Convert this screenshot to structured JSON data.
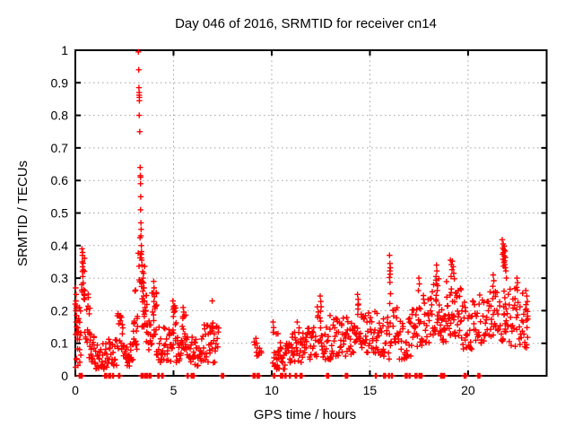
{
  "page": {
    "background": "#ffffff"
  },
  "chart_data": {
    "type": "scatter",
    "title": "Day 046 of 2016, SRMTID for receiver cn14",
    "xlabel": "GPS time / hours",
    "ylabel": "SRMTID / TECUs",
    "xlim": [
      0,
      24
    ],
    "ylim": [
      0,
      1
    ],
    "xticks": {
      "values": [
        0,
        5,
        10,
        15,
        20
      ],
      "labels": [
        "0",
        "5",
        "10",
        "15",
        "20"
      ]
    },
    "yticks": {
      "values": [
        0,
        0.1,
        0.2,
        0.3,
        0.4,
        0.5,
        0.6,
        0.7,
        0.8,
        0.9,
        1
      ],
      "labels": [
        "0",
        "0.1",
        "0.2",
        "0.3",
        "0.4",
        "0.5",
        "0.6",
        "0.7",
        "0.8",
        "0.9",
        "1"
      ]
    },
    "grid": true,
    "grid_style": "dotted",
    "grid_color": "#a0a0a0",
    "border_color": "#000000",
    "legend_position": "none",
    "series_name": "SRMTID",
    "marker": {
      "shape": "plus",
      "color": "#ff0000",
      "size": 7
    },
    "seed": 1337,
    "points": [
      [
        3.21,
        0.995
      ],
      [
        3.23,
        0.94
      ],
      [
        3.24,
        0.885
      ],
      [
        3.25,
        0.87
      ],
      [
        3.25,
        0.862
      ],
      [
        3.26,
        0.855
      ],
      [
        3.26,
        0.845
      ],
      [
        3.25,
        0.8
      ],
      [
        3.28,
        0.75
      ],
      [
        3.3,
        0.64
      ],
      [
        3.31,
        0.615
      ],
      [
        3.32,
        0.61
      ],
      [
        3.32,
        0.59
      ],
      [
        3.33,
        0.55
      ],
      [
        3.32,
        0.51
      ],
      [
        3.34,
        0.47
      ],
      [
        3.35,
        0.45
      ],
      [
        3.34,
        0.43
      ],
      [
        3.36,
        0.4
      ],
      [
        3.33,
        0.375
      ],
      [
        3.38,
        0.355
      ],
      [
        3.4,
        0.34
      ],
      [
        3.42,
        0.32
      ],
      [
        3.45,
        0.3
      ],
      [
        3.47,
        0.285
      ],
      [
        3.5,
        0.27
      ],
      [
        3.44,
        0.26
      ],
      [
        3.48,
        0.245
      ],
      [
        3.52,
        0.23
      ],
      [
        3.55,
        0.21
      ],
      [
        0.02,
        0.27
      ],
      [
        0.04,
        0.25
      ],
      [
        0.03,
        0.23
      ],
      [
        0.05,
        0.215
      ],
      [
        0.02,
        0.2
      ],
      [
        0.06,
        0.185
      ],
      [
        0.04,
        0.165
      ],
      [
        0.07,
        0.15
      ],
      [
        0.34,
        0.39
      ],
      [
        0.36,
        0.37
      ],
      [
        0.35,
        0.35
      ],
      [
        0.37,
        0.335
      ],
      [
        0.36,
        0.32
      ],
      [
        0.38,
        0.305
      ],
      [
        0.4,
        0.285
      ],
      [
        0.42,
        0.265
      ],
      [
        0.44,
        0.25
      ],
      [
        3.99,
        0.29
      ],
      [
        4.01,
        0.27
      ],
      [
        3.97,
        0.255
      ],
      [
        4.03,
        0.243
      ],
      [
        4.0,
        0.228
      ],
      [
        4.05,
        0.212
      ],
      [
        4.97,
        0.23
      ],
      [
        5.0,
        0.212
      ],
      [
        5.02,
        0.195
      ],
      [
        4.99,
        0.182
      ],
      [
        5.49,
        0.21
      ],
      [
        5.52,
        0.196
      ],
      [
        5.47,
        0.182
      ],
      [
        6.97,
        0.23
      ],
      [
        7.0,
        0.162
      ],
      [
        6.94,
        0.152
      ],
      [
        9.2,
        0.115
      ],
      [
        9.23,
        0.1
      ],
      [
        10.07,
        0.165
      ],
      [
        10.1,
        0.148
      ],
      [
        11.3,
        0.165
      ],
      [
        12.47,
        0.245
      ],
      [
        12.5,
        0.228
      ],
      [
        12.52,
        0.212
      ],
      [
        12.49,
        0.198
      ],
      [
        12.97,
        0.185
      ],
      [
        14.37,
        0.25
      ],
      [
        14.4,
        0.235
      ],
      [
        14.42,
        0.22
      ],
      [
        14.39,
        0.205
      ],
      [
        16.0,
        0.37
      ],
      [
        16.02,
        0.345
      ],
      [
        16.04,
        0.332
      ],
      [
        16.01,
        0.322
      ],
      [
        16.03,
        0.312
      ],
      [
        16.0,
        0.302
      ],
      [
        16.02,
        0.287
      ],
      [
        16.05,
        0.252
      ],
      [
        16.01,
        0.222
      ],
      [
        17.49,
        0.3
      ],
      [
        17.52,
        0.282
      ],
      [
        17.47,
        0.262
      ],
      [
        18.39,
        0.34
      ],
      [
        18.41,
        0.322
      ],
      [
        18.37,
        0.305
      ],
      [
        18.4,
        0.282
      ],
      [
        18.43,
        0.262
      ],
      [
        18.38,
        0.247
      ],
      [
        19.1,
        0.355
      ],
      [
        19.15,
        0.342
      ],
      [
        19.2,
        0.352
      ],
      [
        19.24,
        0.335
      ],
      [
        19.18,
        0.326
      ],
      [
        19.27,
        0.315
      ],
      [
        19.13,
        0.305
      ],
      [
        19.3,
        0.298
      ],
      [
        21.28,
        0.31
      ],
      [
        21.31,
        0.292
      ],
      [
        21.26,
        0.275
      ],
      [
        21.3,
        0.255
      ],
      [
        21.74,
        0.418
      ],
      [
        21.79,
        0.405
      ],
      [
        21.84,
        0.398
      ],
      [
        21.77,
        0.392
      ],
      [
        21.82,
        0.387
      ],
      [
        21.88,
        0.383
      ],
      [
        21.8,
        0.378
      ],
      [
        21.75,
        0.373
      ],
      [
        21.85,
        0.368
      ],
      [
        21.9,
        0.363
      ],
      [
        21.78,
        0.358
      ],
      [
        21.86,
        0.353
      ],
      [
        21.83,
        0.348
      ],
      [
        21.87,
        0.342
      ],
      [
        21.81,
        0.337
      ],
      [
        21.89,
        0.332
      ],
      [
        21.92,
        0.322
      ],
      [
        21.95,
        0.3
      ],
      [
        21.83,
        0.26
      ],
      [
        21.87,
        0.24
      ],
      [
        21.9,
        0.22
      ],
      [
        21.84,
        0.19
      ],
      [
        21.88,
        0.16
      ],
      [
        21.92,
        0.135
      ],
      [
        22.49,
        0.3
      ],
      [
        22.52,
        0.286
      ],
      [
        22.47,
        0.272
      ],
      [
        22.94,
        0.262
      ],
      [
        22.99,
        0.245
      ],
      [
        23.02,
        0.228
      ],
      [
        22.97,
        0.205
      ],
      [
        23.04,
        0.175
      ],
      [
        23.0,
        0.148
      ],
      [
        23.03,
        0.118
      ],
      [
        22.98,
        0.095
      ]
    ],
    "bands": [
      [
        0.0,
        0.3,
        0.12,
        0.28,
        14
      ],
      [
        0.0,
        0.28,
        0.02,
        0.12,
        10
      ],
      [
        0.3,
        0.5,
        0.22,
        0.38,
        10
      ],
      [
        0.45,
        0.75,
        0.1,
        0.26,
        16
      ],
      [
        0.7,
        1.0,
        0.04,
        0.13,
        16
      ],
      [
        1.0,
        1.6,
        0.02,
        0.1,
        28
      ],
      [
        1.6,
        2.1,
        0.03,
        0.12,
        24
      ],
      [
        2.1,
        2.45,
        0.06,
        0.2,
        18
      ],
      [
        2.45,
        2.95,
        0.03,
        0.11,
        22
      ],
      [
        2.95,
        3.18,
        0.08,
        0.3,
        16
      ],
      [
        3.2,
        3.4,
        0.28,
        0.44,
        10
      ],
      [
        3.35,
        3.65,
        0.15,
        0.37,
        18
      ],
      [
        3.6,
        3.9,
        0.08,
        0.2,
        14
      ],
      [
        3.9,
        4.15,
        0.12,
        0.27,
        16
      ],
      [
        4.1,
        4.9,
        0.04,
        0.15,
        36
      ],
      [
        4.9,
        5.15,
        0.08,
        0.22,
        14
      ],
      [
        5.1,
        5.45,
        0.04,
        0.12,
        16
      ],
      [
        5.4,
        5.65,
        0.08,
        0.2,
        12
      ],
      [
        5.6,
        6.45,
        0.03,
        0.13,
        38
      ],
      [
        6.45,
        7.3,
        0.04,
        0.16,
        40
      ],
      [
        9.1,
        9.5,
        0.055,
        0.105,
        10
      ],
      [
        10.05,
        10.35,
        0.02,
        0.15,
        16
      ],
      [
        10.3,
        11.0,
        0.02,
        0.12,
        30
      ],
      [
        11.0,
        11.55,
        0.04,
        0.16,
        26
      ],
      [
        11.55,
        12.3,
        0.05,
        0.15,
        34
      ],
      [
        12.3,
        12.6,
        0.08,
        0.22,
        16
      ],
      [
        12.6,
        13.1,
        0.05,
        0.15,
        22
      ],
      [
        13.1,
        14.2,
        0.06,
        0.18,
        48
      ],
      [
        14.2,
        14.6,
        0.08,
        0.24,
        18
      ],
      [
        14.6,
        15.45,
        0.07,
        0.2,
        38
      ],
      [
        15.45,
        16.1,
        0.05,
        0.18,
        28
      ],
      [
        16.15,
        16.45,
        0.1,
        0.24,
        14
      ],
      [
        16.45,
        17.1,
        0.05,
        0.18,
        28
      ],
      [
        17.1,
        17.65,
        0.08,
        0.24,
        24
      ],
      [
        17.65,
        18.25,
        0.1,
        0.26,
        26
      ],
      [
        18.25,
        19.0,
        0.1,
        0.3,
        40
      ],
      [
        19.0,
        19.65,
        0.12,
        0.28,
        34
      ],
      [
        19.65,
        20.35,
        0.08,
        0.23,
        32
      ],
      [
        20.35,
        21.05,
        0.1,
        0.25,
        30
      ],
      [
        21.05,
        21.55,
        0.12,
        0.28,
        22
      ],
      [
        21.55,
        22.1,
        0.1,
        0.26,
        20
      ],
      [
        22.1,
        23.05,
        0.08,
        0.27,
        40
      ]
    ],
    "zero_marks": [
      0.2,
      0.23,
      0.3,
      1.5,
      1.52,
      1.55,
      1.7,
      1.72,
      1.75,
      1.9,
      2.2,
      2.22,
      3.35,
      3.4,
      3.42,
      3.55,
      3.6,
      3.62,
      3.75,
      3.8,
      4.2,
      4.22,
      4.4,
      4.42,
      5.7,
      5.9,
      5.92,
      6.0,
      7.45,
      7.47,
      7.5,
      9.05,
      9.1,
      9.25,
      9.3,
      9.32,
      10.1,
      10.45,
      10.5,
      10.52,
      10.68,
      10.9,
      11.2,
      11.22,
      11.45,
      11.5,
      12.8,
      12.82,
      12.85,
      13.75,
      13.8,
      13.82,
      15.28,
      15.7,
      15.75,
      15.95,
      16.1,
      16.8,
      16.85,
      17.0,
      17.3,
      17.35,
      17.5,
      17.55,
      17.6,
      18.6,
      18.65,
      18.75,
      19.8,
      19.85,
      20.5,
      20.55
    ]
  }
}
